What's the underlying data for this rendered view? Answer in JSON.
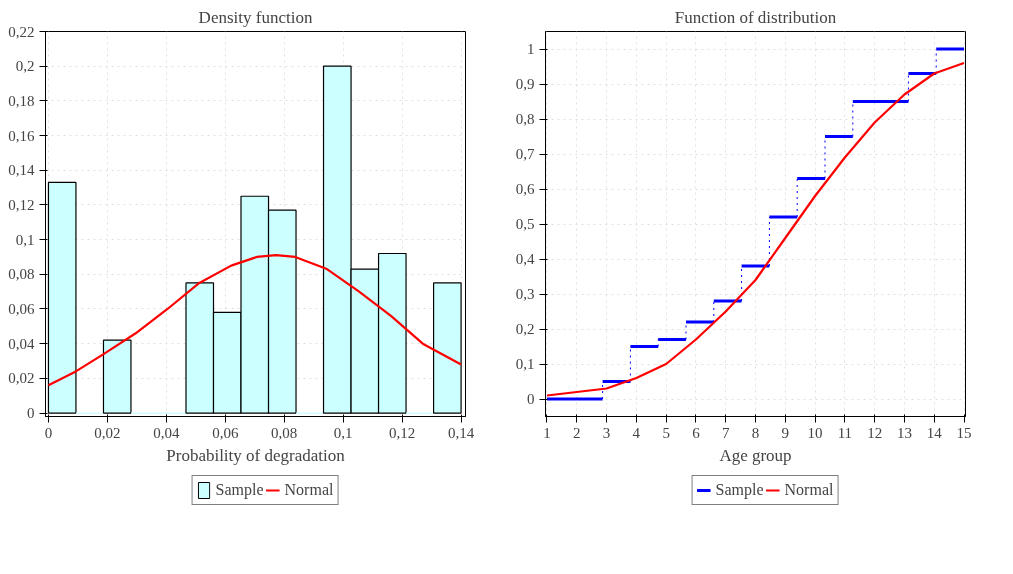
{
  "chart_data": [
    {
      "type": "histogram",
      "title": "Density function",
      "xlabel": "Probability of degradation",
      "bins": [
        0,
        0.00933,
        0.01867,
        0.028,
        0.03733,
        0.04667,
        0.056,
        0.06533,
        0.07467,
        0.084,
        0.09333,
        0.10267,
        0.112,
        0.12133,
        0.13067,
        0.14
      ],
      "series": [
        {
          "name": "Sample",
          "color": "#ccffff",
          "values": [
            0.133,
            0,
            0.042,
            0,
            0,
            0.075,
            0.058,
            0.125,
            0.117,
            0,
            0.2,
            0.083,
            0.092,
            0,
            0.075
          ]
        },
        {
          "name": "Normal",
          "type": "line",
          "color": "#ff0000",
          "x": [
            0,
            0.0093,
            0.0187,
            0.0296,
            0.0404,
            0.0512,
            0.062,
            0.0707,
            0.0772,
            0.0837,
            0.0945,
            0.1054,
            0.1162,
            0.127,
            0.14
          ],
          "values": [
            0.016,
            0.024,
            0.034,
            0.046,
            0.06,
            0.075,
            0.085,
            0.09,
            0.091,
            0.09,
            0.083,
            0.07,
            0.056,
            0.04,
            0.028
          ]
        }
      ],
      "xlim": [
        -0.001,
        0.1415
      ],
      "ylim": [
        -0.002,
        0.22
      ],
      "xticks": [
        {
          "value": 0,
          "label": "0"
        },
        {
          "value": 0.02,
          "label": "0,02"
        },
        {
          "value": 0.04,
          "label": "0,04"
        },
        {
          "value": 0.06,
          "label": "0,06"
        },
        {
          "value": 0.08,
          "label": "0,08"
        },
        {
          "value": 0.1,
          "label": "0,1"
        },
        {
          "value": 0.12,
          "label": "0,12"
        },
        {
          "value": 0.14,
          "label": "0,14"
        }
      ],
      "yticks": [
        {
          "value": 0,
          "label": "0"
        },
        {
          "value": 0.02,
          "label": "0,02"
        },
        {
          "value": 0.04,
          "label": "0,04"
        },
        {
          "value": 0.06,
          "label": "0,06"
        },
        {
          "value": 0.08,
          "label": "0,08"
        },
        {
          "value": 0.1,
          "label": "0,1"
        },
        {
          "value": 0.12,
          "label": "0,12"
        },
        {
          "value": 0.14,
          "label": "0,14"
        },
        {
          "value": 0.16,
          "label": "0,16"
        },
        {
          "value": 0.18,
          "label": "0,18"
        },
        {
          "value": 0.2,
          "label": "0,2"
        },
        {
          "value": 0.22,
          "label": "0,22"
        }
      ],
      "grid": true,
      "legend": "bottom"
    },
    {
      "type": "step",
      "title": "Function of distribution",
      "xlabel": "Age group",
      "series": [
        {
          "name": "Sample",
          "color": "#0000ff",
          "x": [
            1,
            2.867,
            3.8,
            4.733,
            5.667,
            6.6,
            7.533,
            8.467,
            9.4,
            10.333,
            11.267,
            13.133,
            14.067,
            15
          ],
          "values": [
            0,
            0.05,
            0.15,
            0.17,
            0.22,
            0.28,
            0.38,
            0.52,
            0.63,
            0.75,
            0.85,
            0.93,
            1.0,
            1.0
          ]
        },
        {
          "name": "Normal",
          "type": "line",
          "color": "#ff0000",
          "x": [
            1,
            2,
            3,
            4,
            5,
            6,
            7,
            8,
            9,
            10,
            11,
            12,
            13,
            14,
            15
          ],
          "values": [
            0.01,
            0.02,
            0.03,
            0.06,
            0.1,
            0.17,
            0.25,
            0.34,
            0.46,
            0.58,
            0.69,
            0.79,
            0.87,
            0.93,
            0.96
          ]
        }
      ],
      "xlim": [
        0.95,
        15.05
      ],
      "ylim": [
        -0.05,
        1.05
      ],
      "xticks": [
        1,
        2,
        3,
        4,
        5,
        6,
        7,
        8,
        9,
        10,
        11,
        12,
        13,
        14,
        15
      ],
      "yticks": [
        0,
        {
          "value": 0.1,
          "label": "0,1"
        },
        {
          "value": 0.2,
          "label": "0,2"
        },
        {
          "value": 0.3,
          "label": "0,3"
        },
        {
          "value": 0.4,
          "label": "0,4"
        },
        {
          "value": 0.5,
          "label": "0,5"
        },
        {
          "value": 0.6,
          "label": "0,6"
        },
        {
          "value": 0.7,
          "label": "0,7"
        },
        {
          "value": 0.8,
          "label": "0,8"
        },
        {
          "value": 0.9,
          "label": "0,9"
        },
        1
      ],
      "grid": true,
      "legend": "bottom"
    }
  ]
}
